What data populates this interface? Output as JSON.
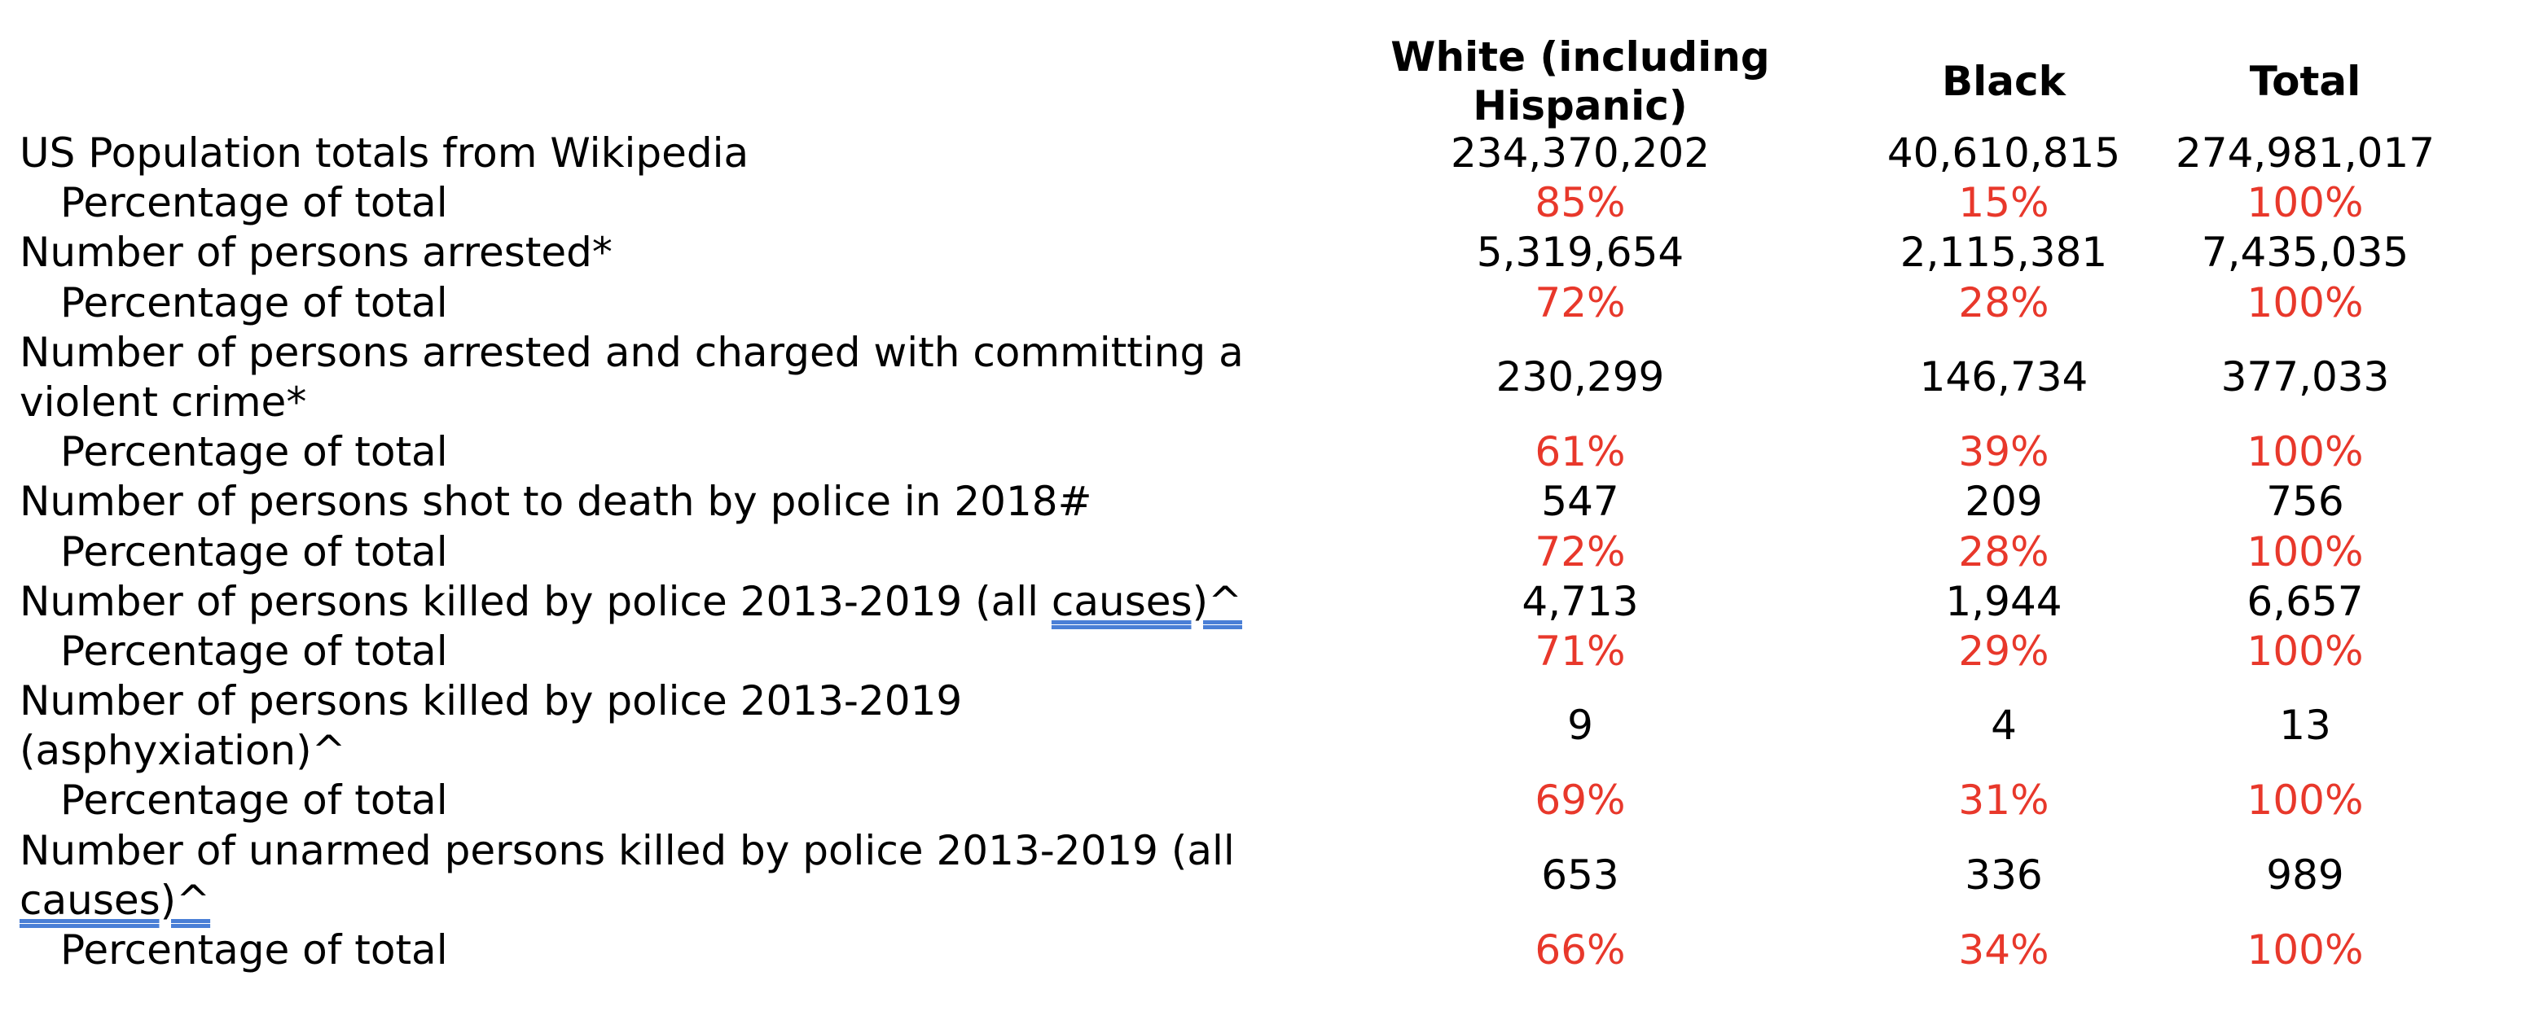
{
  "headers": {
    "white": "White (including Hispanic)",
    "black": "Black",
    "total": "Total"
  },
  "rows": [
    {
      "label": "US Population totals from Wikipedia",
      "white": "234,370,202",
      "black": "40,610,815",
      "total": "274,981,017"
    },
    {
      "label": "Percentage of total",
      "white": "85%",
      "black": "15%",
      "total": "100%"
    },
    {
      "label": "Number of persons arrested*",
      "white": "5,319,654",
      "black": "2,115,381",
      "total": "7,435,035"
    },
    {
      "label": "Percentage of total",
      "white": "72%",
      "black": "28%",
      "total": "100%"
    },
    {
      "label": "Number of persons arrested and charged with committing a violent crime*",
      "white": "230,299",
      "black": "146,734",
      "total": "377,033"
    },
    {
      "label": "Percentage of total",
      "white": "61%",
      "black": "39%",
      "total": "100%"
    },
    {
      "label": "Number of persons shot to death by police in 2018#",
      "white": "547",
      "black": "209",
      "total": "756"
    },
    {
      "label": "Percentage of total",
      "white": "72%",
      "black": "28%",
      "total": "100%"
    },
    {
      "label_before": "Number of persons killed by police 2013-2019 (all ",
      "label_underlined": "causes)^",
      "white": "4,713",
      "black": "1,944",
      "total": "6,657"
    },
    {
      "label": "Percentage of total",
      "white": "71%",
      "black": "29%",
      "total": "100%"
    },
    {
      "label": "Number of persons killed by police 2013-2019 (asphyxiation)^",
      "white": "9",
      "black": "4",
      "total": "13"
    },
    {
      "label": "Percentage of total",
      "white": "69%",
      "black": "31%",
      "total": "100%"
    },
    {
      "label_before": "Number of unarmed persons killed by police 2013-2019 (all ",
      "label_underlined": "causes)^",
      "white": "653",
      "black": "336",
      "total": "989"
    },
    {
      "label": "Percentage of total",
      "white": "66%",
      "black": "34%",
      "total": "100%"
    }
  ],
  "colors": {
    "text": "#000000",
    "percentage": "#e8382b",
    "spellcheck_underline": "#4a7fd6"
  }
}
